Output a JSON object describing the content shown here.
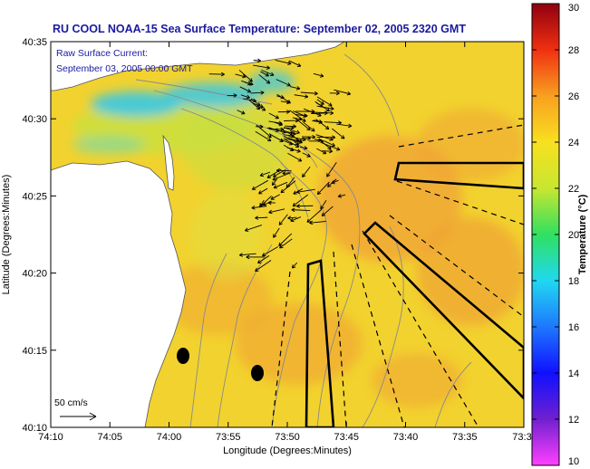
{
  "title": "RU COOL  NOAA-15  Sea Surface Temperature:  September 02, 2005 2320 GMT",
  "inset": {
    "line1": "Raw Surface Current:",
    "line2": "September 03, 2005 00:00 GMT"
  },
  "scale_label": "50 cm/s",
  "axes": {
    "xlabel": "Longitude (Degrees:Minutes)",
    "ylabel": "Latitude (Degrees:Minutes)",
    "xticks": [
      "74:10",
      "74:05",
      "74:00",
      "73:55",
      "73:50",
      "73:45",
      "73:40",
      "73:35",
      "73:3"
    ],
    "yticks": [
      "40:35",
      "40:30",
      "40:25",
      "40:20",
      "40:15",
      "40:10"
    ]
  },
  "colorbar": {
    "label": "Temperature (°C)",
    "ticks": [
      "30",
      "28",
      "26",
      "24",
      "22",
      "20",
      "18",
      "16",
      "14",
      "12",
      "10"
    ]
  },
  "colors": {
    "title": "#1a1aa0",
    "land": "#ffffff",
    "water_base": "#f2d22e",
    "cool_water": "#38c8e6",
    "warm_water": "#f0a234",
    "contour": "#8a8a8a",
    "vector": "#000000"
  }
}
